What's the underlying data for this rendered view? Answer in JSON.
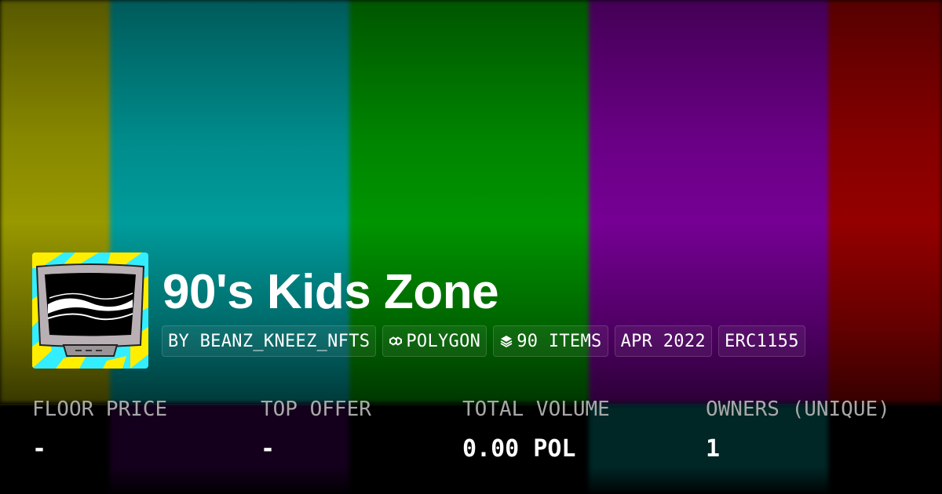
{
  "collection": {
    "title": "90's Kids Zone",
    "creator": "BY BEANZ_KNEEZ_NFTS",
    "chain": "POLYGON",
    "items": "90 ITEMS",
    "created": "APR 2022",
    "standard": "ERC1155"
  },
  "stats": [
    {
      "label": "FLOOR PRICE",
      "value": "-"
    },
    {
      "label": "TOP OFFER",
      "value": "-"
    },
    {
      "label": "TOTAL VOLUME",
      "value": "0.00 POL"
    },
    {
      "label": "OWNERS (UNIQUE)",
      "value": "1"
    }
  ],
  "icons": {
    "chain": "polygon-icon",
    "items": "layers-icon"
  },
  "colors": {
    "bar_yellow": "#a0a000",
    "bar_cyan": "#00a4a4",
    "bar_green": "#009c00",
    "bar_purple": "#7c009c",
    "bar_red": "#9c0000"
  }
}
